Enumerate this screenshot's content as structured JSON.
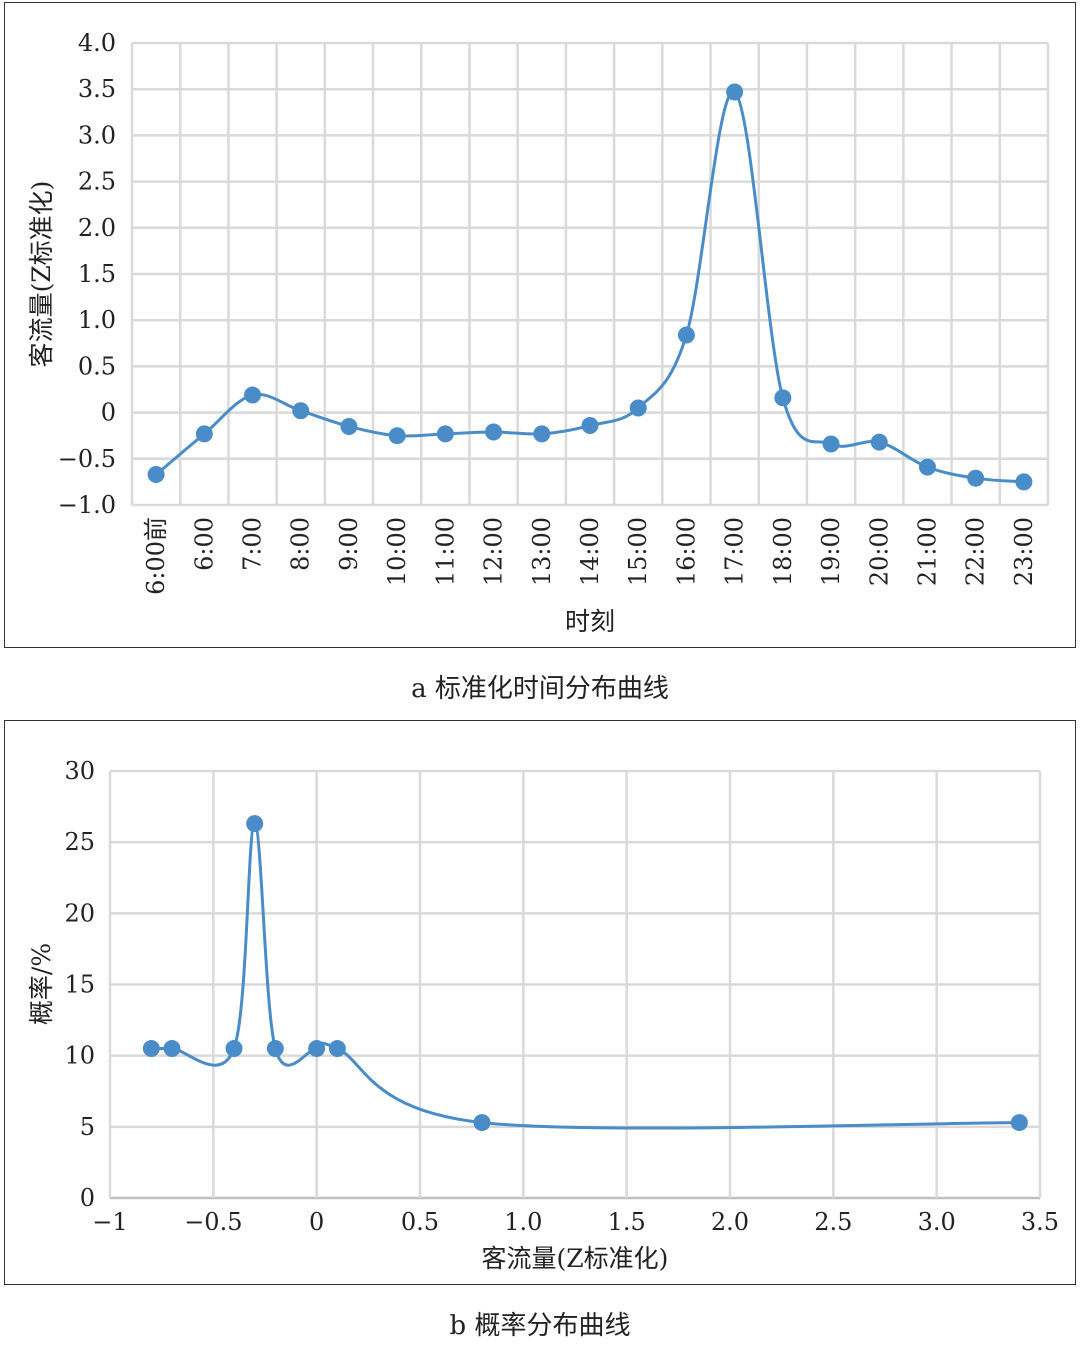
{
  "chart_data": [
    {
      "type": "line",
      "caption": "a 标准化时间分布曲线",
      "xlabel": "时刻",
      "ylabel": "客流量(Z标准化)",
      "categories": [
        "6:00前",
        "6:00",
        "7:00",
        "8:00",
        "9:00",
        "10:00",
        "11:00",
        "12:00",
        "13:00",
        "14:00",
        "15:00",
        "16:00",
        "17:00",
        "18:00",
        "19:00",
        "20:00",
        "21:00",
        "22:00",
        "23:00"
      ],
      "values": [
        -0.67,
        -0.23,
        0.19,
        0.02,
        -0.15,
        -0.25,
        -0.23,
        -0.21,
        -0.23,
        -0.14,
        0.05,
        0.84,
        3.47,
        0.16,
        -0.34,
        -0.32,
        -0.59,
        -0.71,
        -0.75
      ],
      "ylim": [
        -1.0,
        4.0
      ],
      "yticks": [
        -1.0,
        -0.5,
        0,
        0.5,
        1.0,
        1.5,
        2.0,
        2.5,
        3.0,
        3.5,
        4.0
      ],
      "ytick_labels": [
        "−1.0",
        "−0.5",
        "0",
        "0.5",
        "1.0",
        "1.5",
        "2.0",
        "2.5",
        "3.0",
        "3.5",
        "4.0"
      ],
      "grid": true,
      "color": "#4a8cc7"
    },
    {
      "type": "line",
      "caption": "b 概率分布曲线",
      "xlabel": "客流量(Z标准化)",
      "ylabel": "概率/%",
      "x": [
        -0.8,
        -0.7,
        -0.4,
        -0.3,
        -0.2,
        0.0,
        0.1,
        0.8,
        3.4
      ],
      "y": [
        10.5,
        10.5,
        10.5,
        26.3,
        10.5,
        10.5,
        10.5,
        5.3,
        5.3
      ],
      "xlim": [
        -1,
        3.5
      ],
      "ylim": [
        0,
        30
      ],
      "xticks": [
        -1,
        -0.5,
        0,
        0.5,
        1.0,
        1.5,
        2.0,
        2.5,
        3.0,
        3.5
      ],
      "xtick_labels": [
        "−1",
        "−0.5",
        "0",
        "0.5",
        "1.0",
        "1.5",
        "2.0",
        "2.5",
        "3.0",
        "3.5"
      ],
      "yticks": [
        0,
        5,
        10,
        15,
        20,
        25,
        30
      ],
      "ytick_labels": [
        "0",
        "5",
        "10",
        "15",
        "20",
        "25",
        "30"
      ],
      "grid": true,
      "color": "#4a8cc7"
    }
  ]
}
